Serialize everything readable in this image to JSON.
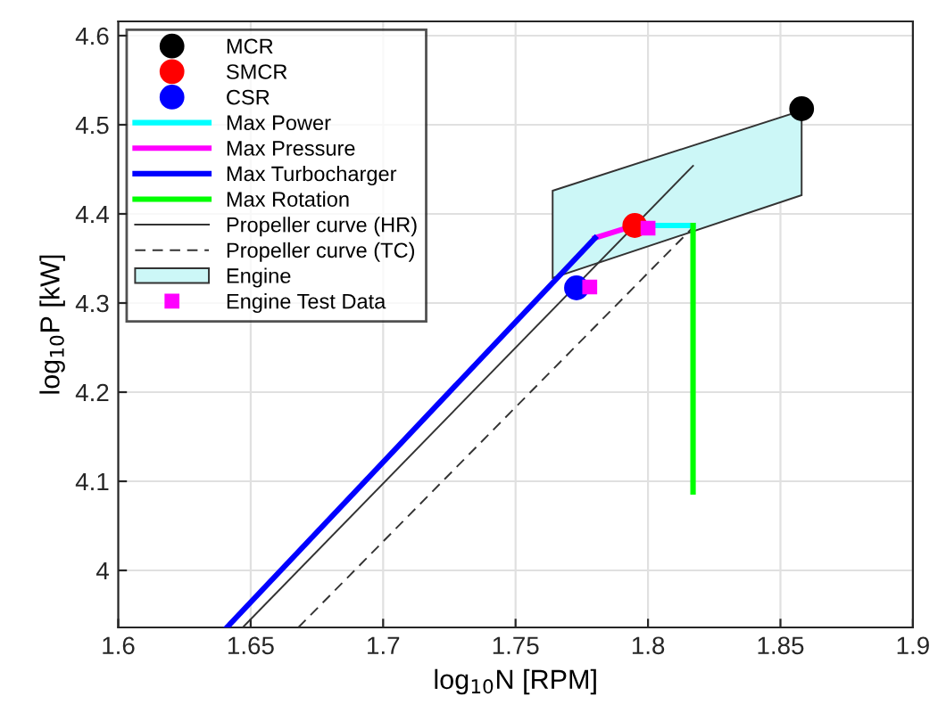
{
  "chart_data": {
    "type": "line",
    "xlabel": "log$_{10}$N [RPM]",
    "ylabel": "log$_{10}$P [kW]",
    "xlim": [
      1.6,
      1.9
    ],
    "ylim": [
      3.936,
      4.616
    ],
    "xticks": [
      1.6,
      1.65,
      1.7,
      1.75,
      1.8,
      1.85,
      1.9
    ],
    "yticks": [
      4,
      4.1,
      4.2,
      4.3,
      4.4,
      4.5,
      4.6
    ],
    "grid": true,
    "legend": "top left",
    "series": [
      {
        "name": "MCR",
        "type": "scatter",
        "marker": "circle",
        "color": "#000000",
        "x": [
          1.858
        ],
        "values": [
          4.518
        ]
      },
      {
        "name": "SMCR",
        "type": "scatter",
        "marker": "circle",
        "color": "#ff0000",
        "x": [
          1.795
        ],
        "values": [
          4.387
        ]
      },
      {
        "name": "CSR",
        "type": "scatter",
        "marker": "circle",
        "color": "#0000ff",
        "x": [
          1.773
        ],
        "values": [
          4.317
        ]
      },
      {
        "name": "Max Power",
        "color": "#00ffff",
        "x": [
          1.795,
          1.817
        ],
        "values": [
          4.387,
          4.387
        ]
      },
      {
        "name": "Max Pressure",
        "color": "#ff00ff",
        "x": [
          1.78,
          1.795
        ],
        "values": [
          4.373,
          4.387
        ]
      },
      {
        "name": "Max Turbocharger",
        "color": "#0000ff",
        "x": [
          1.641,
          1.78
        ],
        "values": [
          3.936,
          4.373
        ]
      },
      {
        "name": "Max Rotation",
        "color": "#00ff00",
        "x": [
          1.817,
          1.817
        ],
        "values": [
          4.387,
          4.088
        ]
      },
      {
        "name": "Propeller curve (HR)",
        "line_style": "solid",
        "color": "#333333",
        "x": [
          1.647,
          1.817
        ],
        "values": [
          3.936,
          4.454
        ]
      },
      {
        "name": "Propeller curve (TC)",
        "line_style": "dashed",
        "color": "#333333",
        "x": [
          1.668,
          1.817
        ],
        "values": [
          3.936,
          4.385
        ]
      },
      {
        "name": "Engine",
        "type": "area",
        "color": "#ccf7f7",
        "x": [
          1.764,
          1.858,
          1.858,
          1.764,
          1.764
        ],
        "values": [
          4.426,
          4.516,
          4.421,
          4.328,
          4.426
        ]
      },
      {
        "name": "Engine Test Data",
        "type": "scatter",
        "marker": "square",
        "color": "#ff00ff",
        "x": [
          1.8,
          1.778
        ],
        "values": [
          4.384,
          4.318
        ]
      }
    ]
  }
}
